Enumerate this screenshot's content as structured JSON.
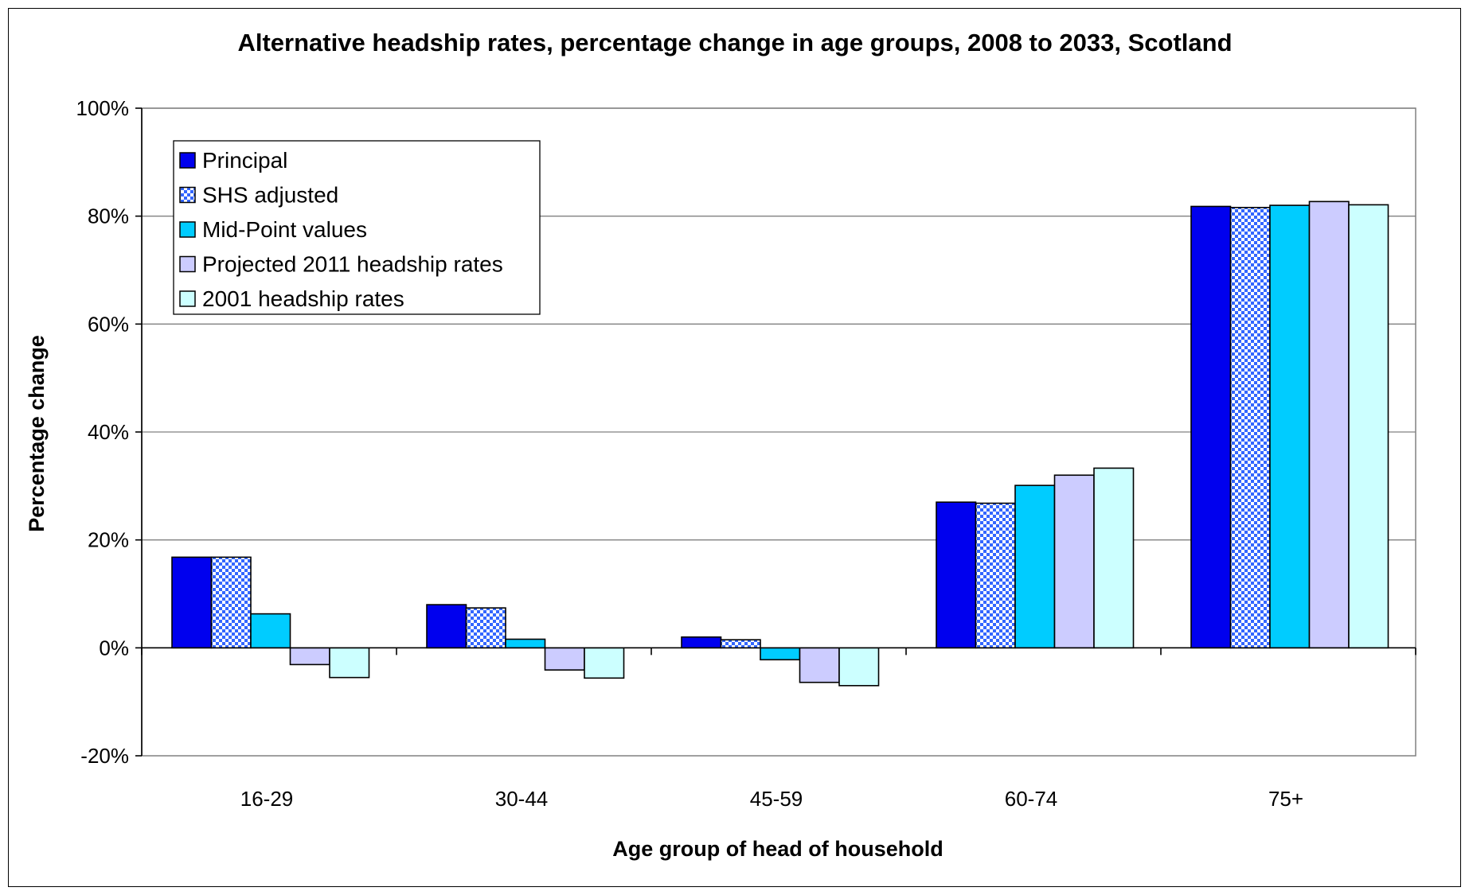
{
  "chart_data": {
    "type": "bar",
    "title": "Alternative headship rates,  percentage change in age groups, 2008 to 2033, Scotland",
    "xlabel": "Age group of head of household",
    "ylabel": "Percentage change",
    "categories": [
      "16-29",
      "30-44",
      "45-59",
      "60-74",
      "75+"
    ],
    "ylim": [
      -20,
      100
    ],
    "yticks": [
      {
        "value": -20,
        "label": "-20%"
      },
      {
        "value": 0,
        "label": "0%"
      },
      {
        "value": 20,
        "label": "20%"
      },
      {
        "value": 40,
        "label": "40%"
      },
      {
        "value": 60,
        "label": "60%"
      },
      {
        "value": 80,
        "label": "80%"
      },
      {
        "value": 100,
        "label": "100%"
      }
    ],
    "grid": true,
    "legend_position": "top-left",
    "series": [
      {
        "name": "Principal",
        "color": "#0000ee",
        "pattern": "solid",
        "values": [
          16.8,
          8.0,
          2.0,
          27.0,
          81.8
        ]
      },
      {
        "name": "SHS adjusted",
        "color": "#3366ff",
        "pattern": "checker",
        "values": [
          16.8,
          7.4,
          1.5,
          26.8,
          81.6
        ]
      },
      {
        "name": "Mid-Point values",
        "color": "#00ccff",
        "pattern": "solid",
        "values": [
          6.3,
          1.6,
          -2.2,
          30.1,
          82.0
        ]
      },
      {
        "name": "Projected 2011 headship rates",
        "color": "#ccccff",
        "pattern": "solid",
        "values": [
          -3.1,
          -4.1,
          -6.4,
          32.0,
          82.7
        ]
      },
      {
        "name": "2001 headship rates",
        "color": "#ccffff",
        "pattern": "solid",
        "values": [
          -5.5,
          -5.6,
          -7.0,
          33.3,
          82.1
        ]
      }
    ]
  }
}
